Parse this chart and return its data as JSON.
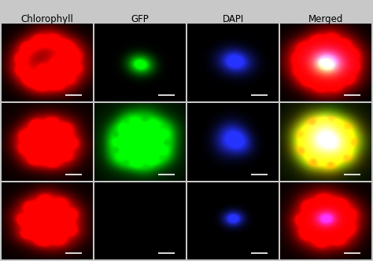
{
  "figsize": [
    4.74,
    3.32
  ],
  "dpi": 100,
  "figure_bg": "#c8c8c8",
  "cell_bg": "#000000",
  "col_labels": [
    "Chlorophyll",
    "GFP",
    "DAPI",
    "Merged"
  ],
  "label_color": "#000000",
  "label_fontsize": 8.5,
  "nrows": 3,
  "ncols": 4,
  "scale_bar_color": "#ffffff",
  "scale_bar_lw": 1.2
}
